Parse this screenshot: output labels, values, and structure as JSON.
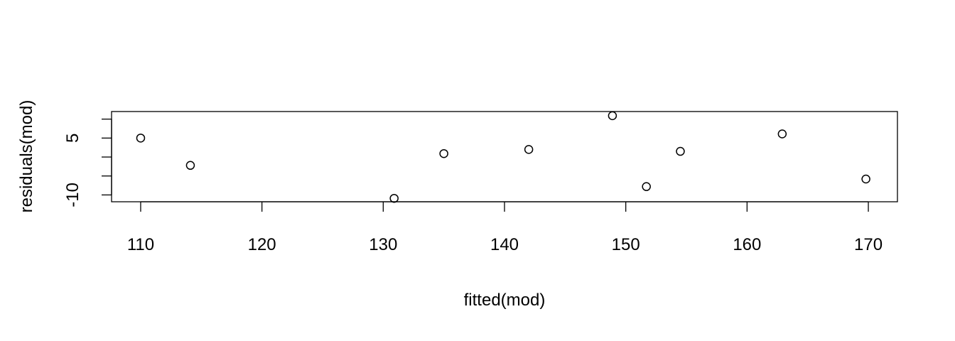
{
  "chart_data": {
    "type": "scatter",
    "xlabel": "fitted(mod)",
    "ylabel": "residuals(mod)",
    "xlim": [
      107.6,
      172.4
    ],
    "ylim": [
      -11.8,
      12.0
    ],
    "x_ticks": [
      110,
      120,
      130,
      140,
      150,
      160,
      170
    ],
    "x_tick_labels": [
      "110",
      "120",
      "130",
      "140",
      "150",
      "160",
      "170"
    ],
    "y_ticks": [
      -10,
      -5,
      0,
      5,
      10
    ],
    "y_tick_labels": [
      "-10",
      "",
      "",
      "5",
      ""
    ],
    "marker": "open-circle",
    "grid": false,
    "points": [
      {
        "x": 110.0,
        "y": 5.0
      },
      {
        "x": 114.1,
        "y": -2.2
      },
      {
        "x": 130.9,
        "y": -10.9
      },
      {
        "x": 135.0,
        "y": 0.9
      },
      {
        "x": 142.0,
        "y": 2.0
      },
      {
        "x": 148.9,
        "y": 10.9
      },
      {
        "x": 151.7,
        "y": -7.8
      },
      {
        "x": 154.5,
        "y": 1.5
      },
      {
        "x": 162.9,
        "y": 6.1
      },
      {
        "x": 169.8,
        "y": -5.8
      }
    ]
  }
}
